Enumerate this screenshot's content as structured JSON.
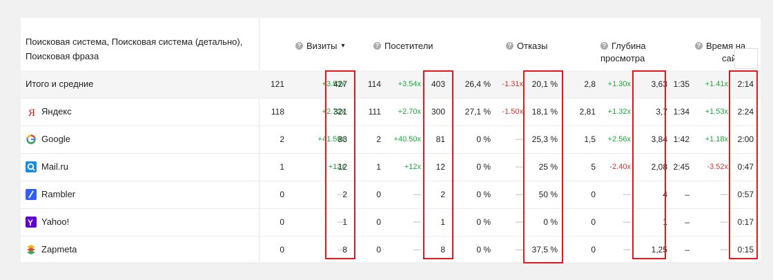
{
  "header": {
    "dimensions": "Поисковая система, Поисковая система (детально), Поисковая фраза",
    "visits": "Визиты",
    "visits_sort": "▾",
    "visitors": "Посетители",
    "bounces": "Отказы",
    "depth_line1": "Глубина",
    "depth_line2": "просмотра",
    "time_line1": "Время на",
    "time_line2": "сайте"
  },
  "rows": [
    {
      "label": "Итого и средние",
      "icon": "",
      "v1": "121",
      "v2": "+3.53x",
      "v3": "427",
      "u1": "114",
      "u2": "+3.54x",
      "u3": "403",
      "b1": "26,4 %",
      "b2": "-1.31x",
      "b3": "20,1 %",
      "d1": "2,8",
      "d2": "+1.30x",
      "d3": "3,63",
      "t1": "1:35",
      "t2": "+1.41x",
      "t3": "2:14"
    },
    {
      "label": "Яндекс",
      "icon": "yandex-icon",
      "v1": "118",
      "v2": "+2.72x",
      "v3": "321",
      "u1": "111",
      "u2": "+2.70x",
      "u3": "300",
      "b1": "27,1 %",
      "b2": "-1.50x",
      "b3": "18,1 %",
      "d1": "2,81",
      "d2": "+1.32x",
      "d3": "3,7",
      "t1": "1:34",
      "t2": "+1.53x",
      "t3": "2:24"
    },
    {
      "label": "Google",
      "icon": "google-icon",
      "v1": "2",
      "v2": "+41.50x",
      "v3": "83",
      "u1": "2",
      "u2": "+40.50x",
      "u3": "81",
      "b1": "0 %",
      "b2": "—",
      "b3": "25,3 %",
      "d1": "1,5",
      "d2": "+2.56x",
      "d3": "3,84",
      "t1": "1:42",
      "t2": "+1.18x",
      "t3": "2:00"
    },
    {
      "label": "Mail.ru",
      "icon": "mailru-icon",
      "v1": "1",
      "v2": "+12x",
      "v3": "12",
      "u1": "1",
      "u2": "+12x",
      "u3": "12",
      "b1": "0 %",
      "b2": "—",
      "b3": "25 %",
      "d1": "5",
      "d2": "-2.40x",
      "d3": "2,08",
      "t1": "2:45",
      "t2": "-3.52x",
      "t3": "0:47"
    },
    {
      "label": "Rambler",
      "icon": "rambler-icon",
      "v1": "0",
      "v2": "—",
      "v3": "2",
      "u1": "0",
      "u2": "—",
      "u3": "2",
      "b1": "0 %",
      "b2": "—",
      "b3": "50 %",
      "d1": "0",
      "d2": "—",
      "d3": "4",
      "t1": "–",
      "t2": "—",
      "t3": "0:57"
    },
    {
      "label": "Yahoo!",
      "icon": "yahoo-icon",
      "v1": "0",
      "v2": "—",
      "v3": "1",
      "u1": "0",
      "u2": "—",
      "u3": "1",
      "b1": "0 %",
      "b2": "—",
      "b3": "0 %",
      "d1": "0",
      "d2": "—",
      "d3": "1",
      "t1": "–",
      "t2": "—",
      "t3": "0:17"
    },
    {
      "label": "Zapmeta",
      "icon": "zapmeta-icon",
      "v1": "0",
      "v2": "—",
      "v3": "8",
      "u1": "0",
      "u2": "—",
      "u3": "8",
      "b1": "0 %",
      "b2": "—",
      "b3": "37,5 %",
      "d1": "0",
      "d2": "—",
      "d3": "1,25",
      "t1": "–",
      "t2": "—",
      "t3": "0:15"
    }
  ],
  "colors": {
    "highlight": "#e3171d",
    "positive": "#1aaa3a",
    "negative": "#e03030"
  }
}
